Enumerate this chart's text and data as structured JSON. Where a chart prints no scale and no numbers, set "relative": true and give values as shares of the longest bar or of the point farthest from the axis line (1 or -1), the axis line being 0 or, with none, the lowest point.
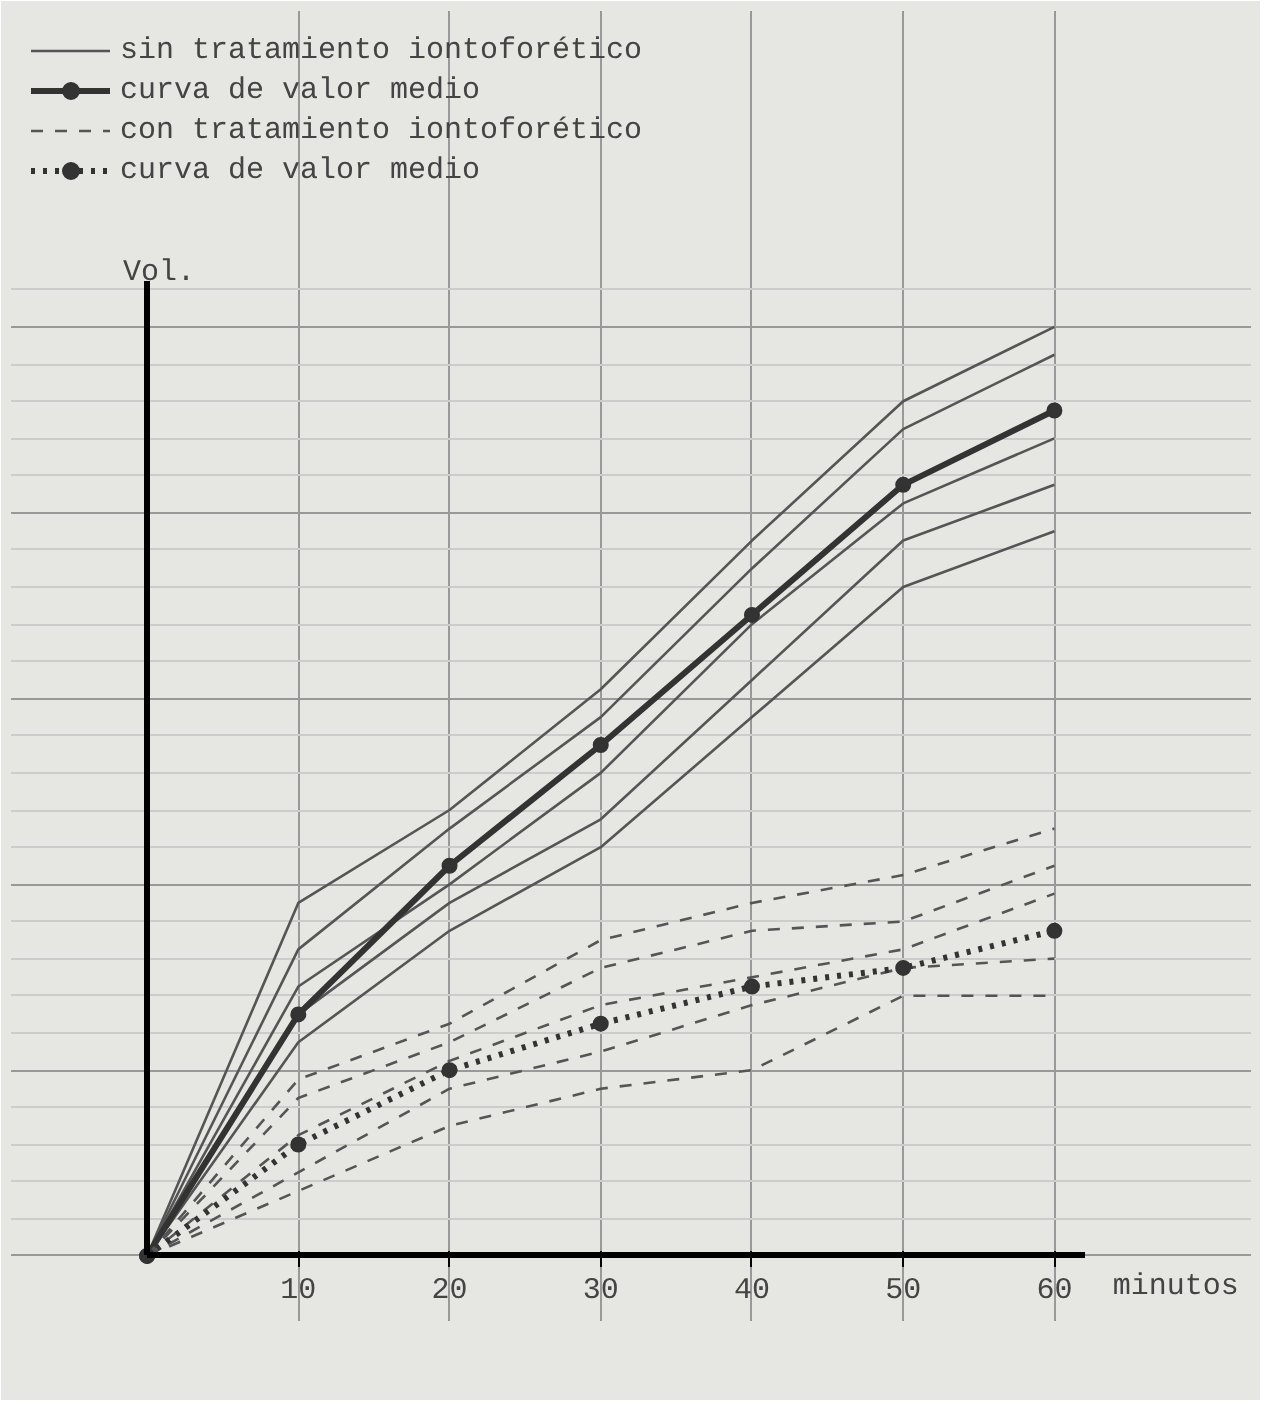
{
  "chart_data": {
    "type": "line",
    "relative": true,
    "xlabel": "minutos",
    "ylabel": "Vol.",
    "x": [
      0,
      10,
      20,
      30,
      40,
      50,
      60
    ],
    "xlim": [
      0,
      62
    ],
    "xticks": [
      10,
      20,
      30,
      40,
      50,
      60
    ],
    "grid": true,
    "legend": "top left",
    "series": [
      {
        "name": "sin tratamiento iontoforético",
        "color": "#555555",
        "line_style": "solid",
        "marker": "none",
        "values": [
          0,
          0.38,
          0.48,
          0.61,
          0.77,
          0.92,
          1.0
        ]
      },
      {
        "color": "#555555",
        "line_style": "solid",
        "marker": "none",
        "values": [
          0,
          0.33,
          0.46,
          0.58,
          0.74,
          0.89,
          0.97
        ]
      },
      {
        "color": "#555555",
        "line_style": "solid",
        "marker": "none",
        "values": [
          0,
          0.29,
          0.4,
          0.52,
          0.68,
          0.81,
          0.88
        ]
      },
      {
        "color": "#555555",
        "line_style": "solid",
        "marker": "none",
        "values": [
          0,
          0.26,
          0.38,
          0.47,
          0.62,
          0.77,
          0.83
        ]
      },
      {
        "color": "#555555",
        "line_style": "solid",
        "marker": "none",
        "values": [
          0,
          0.23,
          0.35,
          0.44,
          0.58,
          0.72,
          0.78
        ]
      },
      {
        "name": "curva de valor medio",
        "color": "#333333",
        "line_style": "solid",
        "marker": "circle",
        "values": [
          0,
          0.26,
          0.42,
          0.55,
          0.69,
          0.83,
          0.91
        ]
      },
      {
        "name": "con tratamiento iontoforético",
        "color": "#555555",
        "line_style": "dashed",
        "marker": "none",
        "values": [
          0,
          0.19,
          0.25,
          0.34,
          0.38,
          0.41,
          0.46
        ]
      },
      {
        "color": "#555555",
        "line_style": "dashed",
        "marker": "none",
        "values": [
          0,
          0.17,
          0.23,
          0.31,
          0.35,
          0.36,
          0.42
        ]
      },
      {
        "color": "#555555",
        "line_style": "dashed",
        "marker": "none",
        "values": [
          0,
          0.13,
          0.21,
          0.27,
          0.3,
          0.33,
          0.39
        ]
      },
      {
        "color": "#555555",
        "line_style": "dashed",
        "marker": "none",
        "values": [
          0,
          0.09,
          0.18,
          0.22,
          0.27,
          0.31,
          0.32
        ]
      },
      {
        "color": "#555555",
        "line_style": "dashed",
        "marker": "none",
        "values": [
          0,
          0.07,
          0.14,
          0.18,
          0.2,
          0.28,
          0.28
        ]
      },
      {
        "name": "curva de valor medio",
        "color": "#333333",
        "line_style": "dotted",
        "marker": "circle",
        "values": [
          0,
          0.12,
          0.2,
          0.25,
          0.29,
          0.31,
          0.35
        ]
      }
    ]
  }
}
